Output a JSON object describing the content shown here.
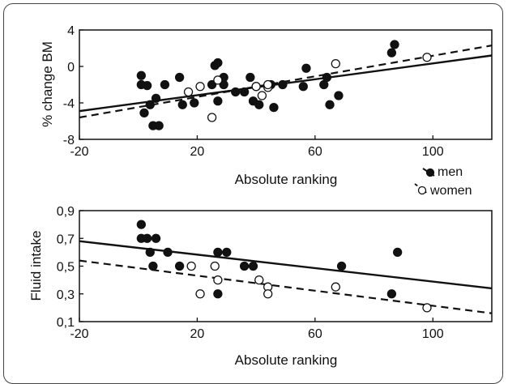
{
  "chart_data": [
    {
      "type": "scatter",
      "title": "",
      "xlabel": "Absolute ranking",
      "ylabel": "% change BM",
      "xlim": [
        -20,
        120
      ],
      "ylim": [
        -8,
        4
      ],
      "xticks": [
        "-20",
        "20",
        "60",
        "100"
      ],
      "yticks": [
        "4",
        "0",
        "-4",
        "-8"
      ],
      "grid": false,
      "legend": {
        "placement": "bottom-right-outside",
        "entries": [
          {
            "label": "men",
            "marker": "filled-circle",
            "line": "solid"
          },
          {
            "label": "women",
            "marker": "open-circle",
            "line": "dashed"
          }
        ]
      },
      "series": [
        {
          "name": "men",
          "marker": "filled-circle",
          "points": [
            [
              1,
              -1
            ],
            [
              1,
              -2
            ],
            [
              2,
              -5.1
            ],
            [
              3,
              -2.1
            ],
            [
              4,
              -4.2
            ],
            [
              5,
              -6.5
            ],
            [
              6,
              -3.5
            ],
            [
              7,
              -6.5
            ],
            [
              9,
              -2
            ],
            [
              14,
              -1.2
            ],
            [
              15,
              -4.2
            ],
            [
              19,
              -4
            ],
            [
              25,
              -2
            ],
            [
              26,
              0.1
            ],
            [
              27,
              0.4
            ],
            [
              27,
              -3.8
            ],
            [
              29,
              -1.2
            ],
            [
              29,
              -2
            ],
            [
              33,
              -2.8
            ],
            [
              36,
              -2.8
            ],
            [
              38,
              -1.2
            ],
            [
              39,
              -3.8
            ],
            [
              40,
              -2.2
            ],
            [
              41,
              -4.2
            ],
            [
              45,
              -2
            ],
            [
              46,
              -4.5
            ],
            [
              49,
              -2
            ],
            [
              56,
              -2.2
            ],
            [
              57,
              -0.2
            ],
            [
              63,
              -2
            ],
            [
              64,
              -1.2
            ],
            [
              65,
              -4.2
            ],
            [
              68,
              -3.2
            ],
            [
              86,
              1.5
            ],
            [
              87,
              2.4
            ]
          ],
          "fit": {
            "x": [
              -20,
              120
            ],
            "y": [
              -4.9,
              1.2
            ]
          }
        },
        {
          "name": "women",
          "marker": "open-circle",
          "points": [
            [
              17,
              -2.8
            ],
            [
              21,
              -2.2
            ],
            [
              25,
              -5.6
            ],
            [
              27,
              -1.5
            ],
            [
              40,
              -2.2
            ],
            [
              42,
              -3.2
            ],
            [
              44,
              -2.3
            ],
            [
              44,
              -2
            ],
            [
              67,
              0.3
            ],
            [
              98,
              1
            ]
          ],
          "fit": {
            "x": [
              -20,
              120
            ],
            "y": [
              -5.6,
              2.3
            ]
          }
        }
      ]
    },
    {
      "type": "scatter",
      "title": "",
      "xlabel": "Absolute ranking",
      "ylabel": "Fluid intake",
      "xlim": [
        -20,
        120
      ],
      "ylim": [
        0.1,
        0.9
      ],
      "xticks": [
        "-20",
        "20",
        "60",
        "100"
      ],
      "yticks": [
        "0,9",
        "0,7",
        "0,5",
        "0,3",
        "0,1"
      ],
      "grid": false,
      "series": [
        {
          "name": "men",
          "marker": "filled-circle",
          "points": [
            [
              1,
              0.8
            ],
            [
              1,
              0.7
            ],
            [
              3,
              0.7
            ],
            [
              4,
              0.6
            ],
            [
              5,
              0.5
            ],
            [
              6,
              0.7
            ],
            [
              10,
              0.6
            ],
            [
              14,
              0.5
            ],
            [
              27,
              0.6
            ],
            [
              27,
              0.3
            ],
            [
              30,
              0.6
            ],
            [
              36,
              0.5
            ],
            [
              39,
              0.5
            ],
            [
              69,
              0.5
            ],
            [
              86,
              0.3
            ],
            [
              88,
              0.6
            ]
          ],
          "fit": {
            "x": [
              -20,
              120
            ],
            "y": [
              0.68,
              0.34
            ]
          }
        },
        {
          "name": "women",
          "marker": "open-circle",
          "points": [
            [
              18,
              0.5
            ],
            [
              21,
              0.3
            ],
            [
              26,
              0.5
            ],
            [
              27,
              0.4
            ],
            [
              41,
              0.4
            ],
            [
              44,
              0.35
            ],
            [
              44,
              0.3
            ],
            [
              67,
              0.35
            ],
            [
              98,
              0.2
            ]
          ],
          "fit": {
            "x": [
              -20,
              120
            ],
            "y": [
              0.54,
              0.16
            ]
          }
        }
      ]
    }
  ]
}
